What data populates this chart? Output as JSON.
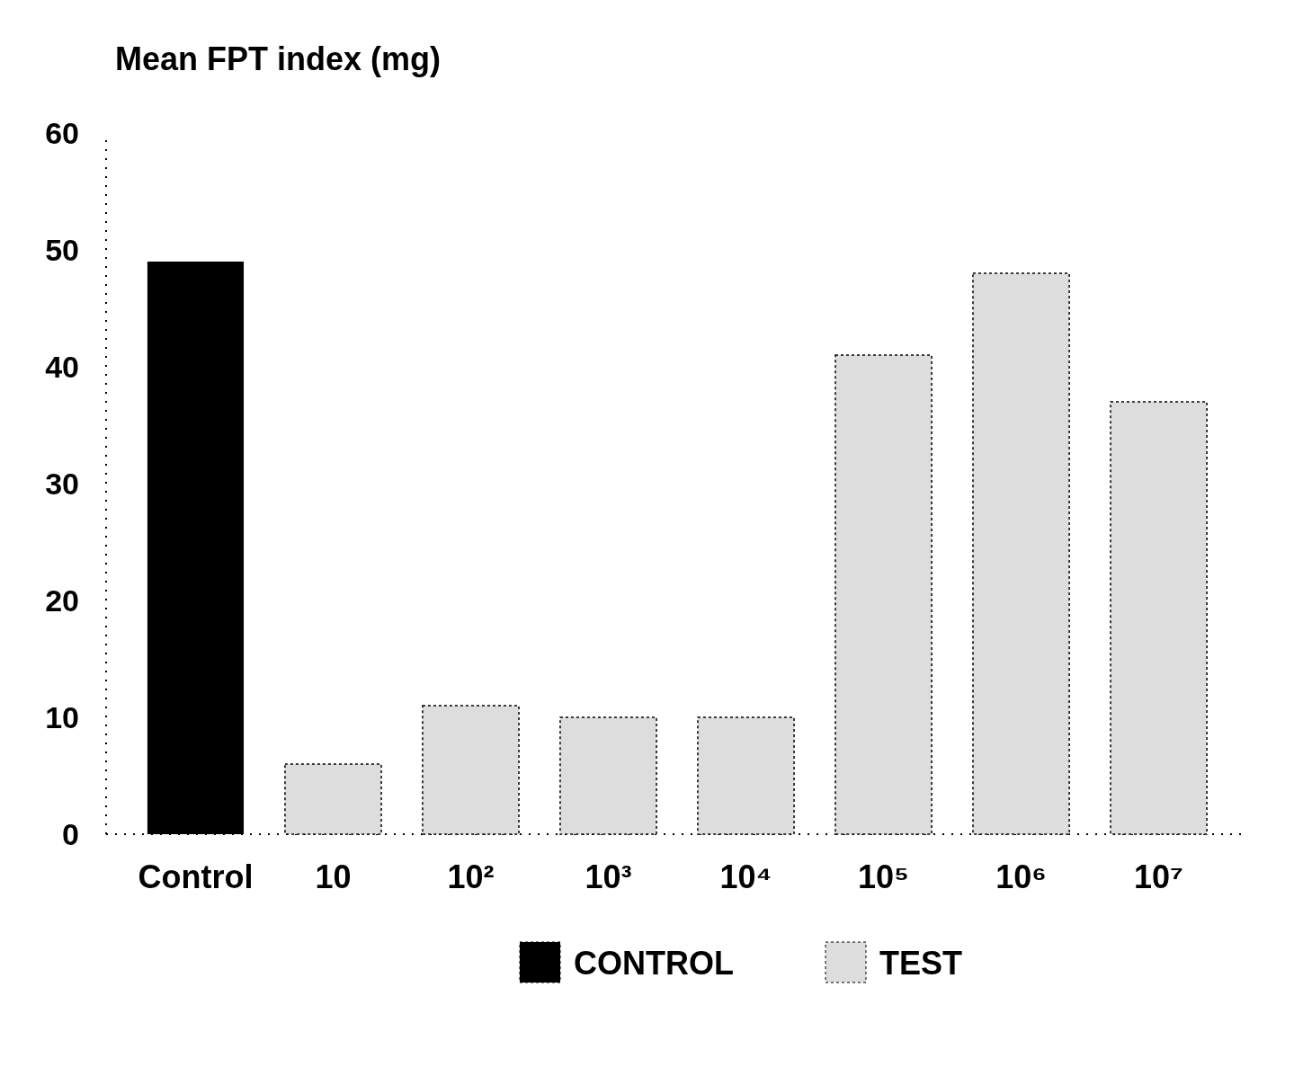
{
  "chart_data": {
    "type": "bar",
    "ylabel": "Mean FPT index (mg)",
    "categories": [
      "Control",
      "10",
      "10²",
      "10³",
      "10⁴",
      "10⁵",
      "10⁶",
      "10⁷"
    ],
    "series": [
      {
        "name": "CONTROL",
        "color": "#000000",
        "values": [
          49,
          null,
          null,
          null,
          null,
          null,
          null,
          null
        ]
      },
      {
        "name": "TEST",
        "color": "#dddddd",
        "values": [
          null,
          6,
          11,
          10,
          10,
          41,
          48,
          37
        ]
      }
    ],
    "ylim": [
      0,
      60
    ],
    "yticks": [
      0,
      10,
      20,
      30,
      40,
      50,
      60
    ],
    "legend": "bottom"
  }
}
